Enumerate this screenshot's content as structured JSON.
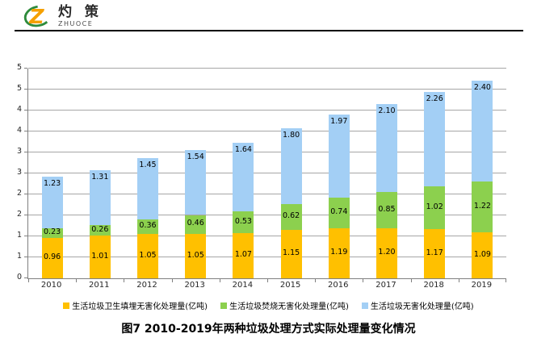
{
  "logo": {
    "brand_cn": "灼 策",
    "brand_en": "ZHUOCE"
  },
  "colors": {
    "landfill_orange": "#FFC000",
    "incineration_green": "#8CD04E",
    "total_blue": "#A3CFF5",
    "gridline": "#A6A6A6",
    "axis": "#808080",
    "logo_orange": "#F5A000",
    "logo_green": "#2E8B3C"
  },
  "chart_data": {
    "type": "bar",
    "stacked": true,
    "categories": [
      "2010",
      "2011",
      "2012",
      "2013",
      "2014",
      "2015",
      "2016",
      "2017",
      "2018",
      "2019"
    ],
    "series": [
      {
        "name": "生活垃圾卫生填埋无害化处理量(亿吨)",
        "color": "#FFC000",
        "label_placement": "center",
        "values": [
          0.96,
          1.01,
          1.05,
          1.05,
          1.07,
          1.15,
          1.19,
          1.2,
          1.17,
          1.09
        ]
      },
      {
        "name": "生活垃圾焚烧无害化处理量(亿吨)",
        "color": "#8CD04E",
        "label_placement": "center",
        "values": [
          0.23,
          0.26,
          0.36,
          0.46,
          0.53,
          0.62,
          0.74,
          0.85,
          1.02,
          1.22
        ]
      },
      {
        "name": "生活垃圾无害化处理量(亿吨)",
        "color": "#A3CFF5",
        "label_placement": "inside-end",
        "values": [
          1.23,
          1.31,
          1.45,
          1.54,
          1.64,
          1.8,
          1.97,
          2.1,
          2.26,
          2.4
        ]
      }
    ],
    "ylim": [
      0,
      5
    ],
    "ytick_step": 0.5,
    "ytick_labels": [
      "0",
      "1",
      "1",
      "2",
      "2",
      "3",
      "3",
      "4",
      "4",
      "5",
      "5"
    ],
    "grid": true,
    "legend_position": "bottom",
    "value_label_decimals": 2,
    "xlabel": "",
    "ylabel": ""
  },
  "title": "图7  2010-2019年两种垃圾处理方式实际处理量变化情况"
}
